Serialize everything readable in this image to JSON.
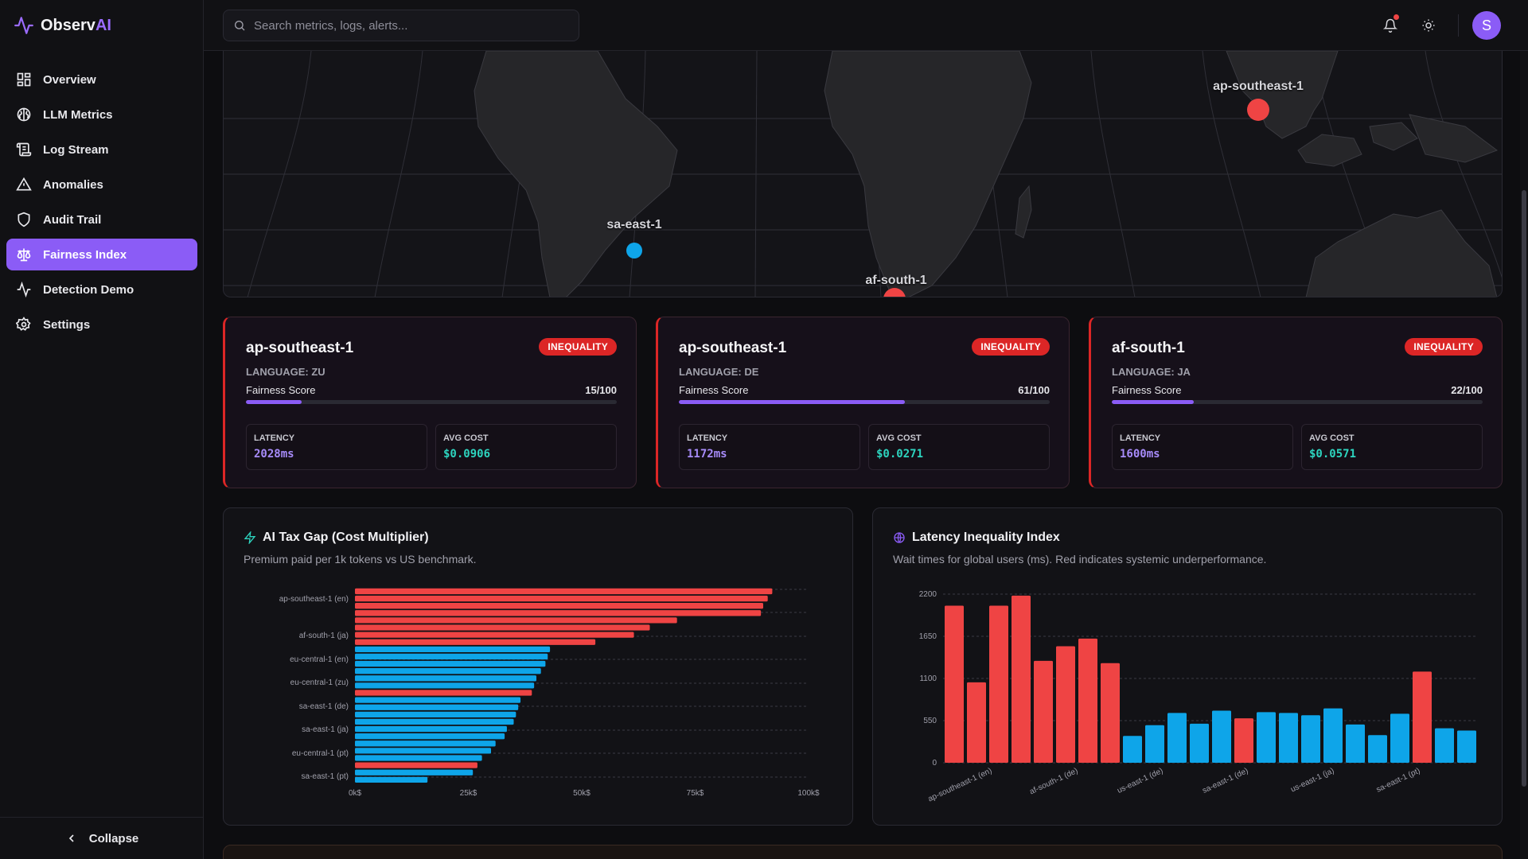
{
  "app": {
    "name_main": "Observ",
    "name_accent": "AI"
  },
  "sidebar": {
    "items": [
      {
        "label": "Overview",
        "icon": "layout-grid-icon",
        "active": false
      },
      {
        "label": "LLM Metrics",
        "icon": "brain-icon",
        "active": false
      },
      {
        "label": "Log Stream",
        "icon": "scroll-text-icon",
        "active": false
      },
      {
        "label": "Anomalies",
        "icon": "alert-triangle-icon",
        "active": false
      },
      {
        "label": "Audit Trail",
        "icon": "shield-icon",
        "active": false
      },
      {
        "label": "Fairness Index",
        "icon": "scale-icon",
        "active": true
      },
      {
        "label": "Detection Demo",
        "icon": "activity-icon",
        "active": false
      },
      {
        "label": "Settings",
        "icon": "gear-icon",
        "active": false
      }
    ],
    "collapse_label": "Collapse"
  },
  "topbar": {
    "search_placeholder": "Search metrics, logs, alerts...",
    "avatar_initial": "S"
  },
  "map": {
    "markers": [
      {
        "label": "ap-southeast-1",
        "status": "inequality",
        "color": "#ef4444"
      },
      {
        "label": "sa-east-1",
        "status": "ok",
        "color": "#0ea5e9"
      },
      {
        "label": "af-south-1",
        "status": "inequality",
        "color": "#ef4444"
      }
    ]
  },
  "cards": [
    {
      "title": "ap-southeast-1",
      "badge": "INEQUALITY",
      "language": "LANGUAGE: ZU",
      "fairness_label": "Fairness Score",
      "fairness_score": "15/100",
      "fairness_value": 15,
      "latency_label": "LATENCY",
      "latency": "2028ms",
      "cost_label": "AVG COST",
      "cost": "$0.0906"
    },
    {
      "title": "ap-southeast-1",
      "badge": "INEQUALITY",
      "language": "LANGUAGE: DE",
      "fairness_label": "Fairness Score",
      "fairness_score": "61/100",
      "fairness_value": 61,
      "latency_label": "LATENCY",
      "latency": "1172ms",
      "cost_label": "AVG COST",
      "cost": "$0.0271"
    },
    {
      "title": "af-south-1",
      "badge": "INEQUALITY",
      "language": "LANGUAGE: JA",
      "fairness_label": "Fairness Score",
      "fairness_score": "22/100",
      "fairness_value": 22,
      "latency_label": "LATENCY",
      "latency": "1600ms",
      "cost_label": "AVG COST",
      "cost": "$0.0571"
    }
  ],
  "colors": {
    "inequality": "#ef4444",
    "normal": "#0ea5e9",
    "accent": "#8b5cf6",
    "latency_text": "#a78bfa",
    "cost_text": "#2dd4bf"
  },
  "panels": {
    "tax_gap": {
      "title": "AI Tax Gap (Cost Multiplier)",
      "subtitle": "Premium paid per 1k tokens vs US benchmark."
    },
    "latency": {
      "title": "Latency Inequality Index",
      "subtitle": "Wait times for global users (ms). Red indicates systemic underperformance."
    }
  },
  "chart_data": [
    {
      "type": "bar",
      "orientation": "horizontal",
      "title": "AI Tax Gap (Cost Multiplier)",
      "xticks": [
        "0k$",
        "25k$",
        "50k$",
        "75k$",
        "100k$"
      ],
      "xlim": [
        0,
        100
      ],
      "y_tick_labels": [
        "ap-southeast-1 (en)",
        "af-south-1 (ja)",
        "eu-central-1 (en)",
        "eu-central-1 (zu)",
        "sa-east-1 (de)",
        "sa-east-1 (ja)",
        "eu-central-1 (pt)",
        "sa-east-1 (pt)"
      ],
      "values": [
        92,
        91,
        90,
        89.5,
        71,
        65,
        61.5,
        53,
        43,
        42.5,
        42,
        41,
        40,
        39.5,
        39,
        36.5,
        36,
        35.5,
        35,
        33.5,
        33,
        31,
        30,
        28,
        27,
        26,
        16
      ],
      "inequality": [
        true,
        true,
        true,
        true,
        true,
        true,
        true,
        true,
        false,
        false,
        false,
        false,
        false,
        false,
        true,
        false,
        false,
        false,
        false,
        false,
        false,
        false,
        false,
        false,
        true,
        false,
        false
      ],
      "grid": true
    },
    {
      "type": "bar",
      "title": "Latency Inequality Index",
      "yticks": [
        0,
        550,
        1100,
        1650,
        2200
      ],
      "ylim": [
        0,
        2200
      ],
      "x_tick_labels": [
        "ap-southeast-1 (en)",
        "af-south-1 (de)",
        "us-east-1 (de)",
        "sa-east-1 (de)",
        "us-east-1 (ja)",
        "sa-east-1 (pt)"
      ],
      "values": [
        2050,
        1050,
        2050,
        2180,
        1330,
        1520,
        1620,
        1300,
        350,
        490,
        650,
        510,
        680,
        580,
        660,
        650,
        620,
        710,
        500,
        360,
        640,
        1190,
        450,
        420
      ],
      "inequality": [
        true,
        true,
        true,
        true,
        true,
        true,
        true,
        true,
        false,
        false,
        false,
        false,
        false,
        true,
        false,
        false,
        false,
        false,
        false,
        false,
        false,
        true,
        false,
        false
      ],
      "grid": true
    }
  ]
}
